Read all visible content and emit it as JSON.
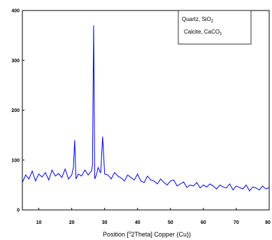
{
  "chart_data": {
    "type": "line",
    "title": "",
    "xlabel": {
      "prefix": "Position [",
      "superscript": "o",
      "suffix": "2Theta] Copper (Cu))"
    },
    "ylabel": "",
    "xlim": [
      5,
      80
    ],
    "ylim": [
      0,
      400
    ],
    "x_ticks": [
      10,
      20,
      30,
      40,
      50,
      60,
      70,
      80
    ],
    "y_ticks": [
      0,
      100,
      200,
      300,
      400
    ],
    "grid": false,
    "legend_position": "top-right",
    "legend": [
      {
        "text": "Quartz, SiO",
        "subscript": "2"
      },
      {
        "text": "Calcite, CaCO",
        "subscript": "3"
      }
    ],
    "line_color": "#0000ee",
    "series": [
      {
        "x": [
          5,
          6,
          7,
          8,
          9,
          10,
          11,
          12,
          13,
          14,
          15,
          16,
          17,
          18,
          19,
          20,
          20.5,
          20.9,
          21.3,
          22,
          23,
          24,
          25,
          26,
          26.3,
          26.65,
          27,
          27.5,
          28,
          28.8,
          29.4,
          30,
          31,
          32,
          33,
          34,
          35,
          36,
          37,
          38,
          39,
          40,
          41,
          42,
          43,
          44,
          45,
          46,
          47,
          48,
          49,
          50,
          51,
          52,
          53,
          54,
          55,
          56,
          57,
          58,
          59,
          60,
          61,
          62,
          63,
          64,
          65,
          66,
          67,
          68,
          69,
          70,
          71,
          72,
          73,
          74,
          75,
          76,
          77,
          78,
          79,
          80
        ],
        "y": [
          55,
          70,
          62,
          78,
          58,
          72,
          66,
          75,
          60,
          80,
          68,
          73,
          65,
          82,
          62,
          70,
          85,
          140,
          62,
          72,
          68,
          80,
          70,
          78,
          90,
          370,
          62,
          70,
          85,
          74,
          147,
          72,
          70,
          62,
          75,
          68,
          64,
          58,
          70,
          65,
          60,
          72,
          58,
          55,
          68,
          60,
          58,
          52,
          62,
          55,
          50,
          58,
          60,
          48,
          52,
          56,
          45,
          50,
          48,
          55,
          44,
          50,
          46,
          52,
          48,
          42,
          50,
          46,
          44,
          52,
          40,
          48,
          45,
          42,
          50,
          38,
          46,
          44,
          40,
          48,
          42,
          45
        ]
      }
    ]
  }
}
